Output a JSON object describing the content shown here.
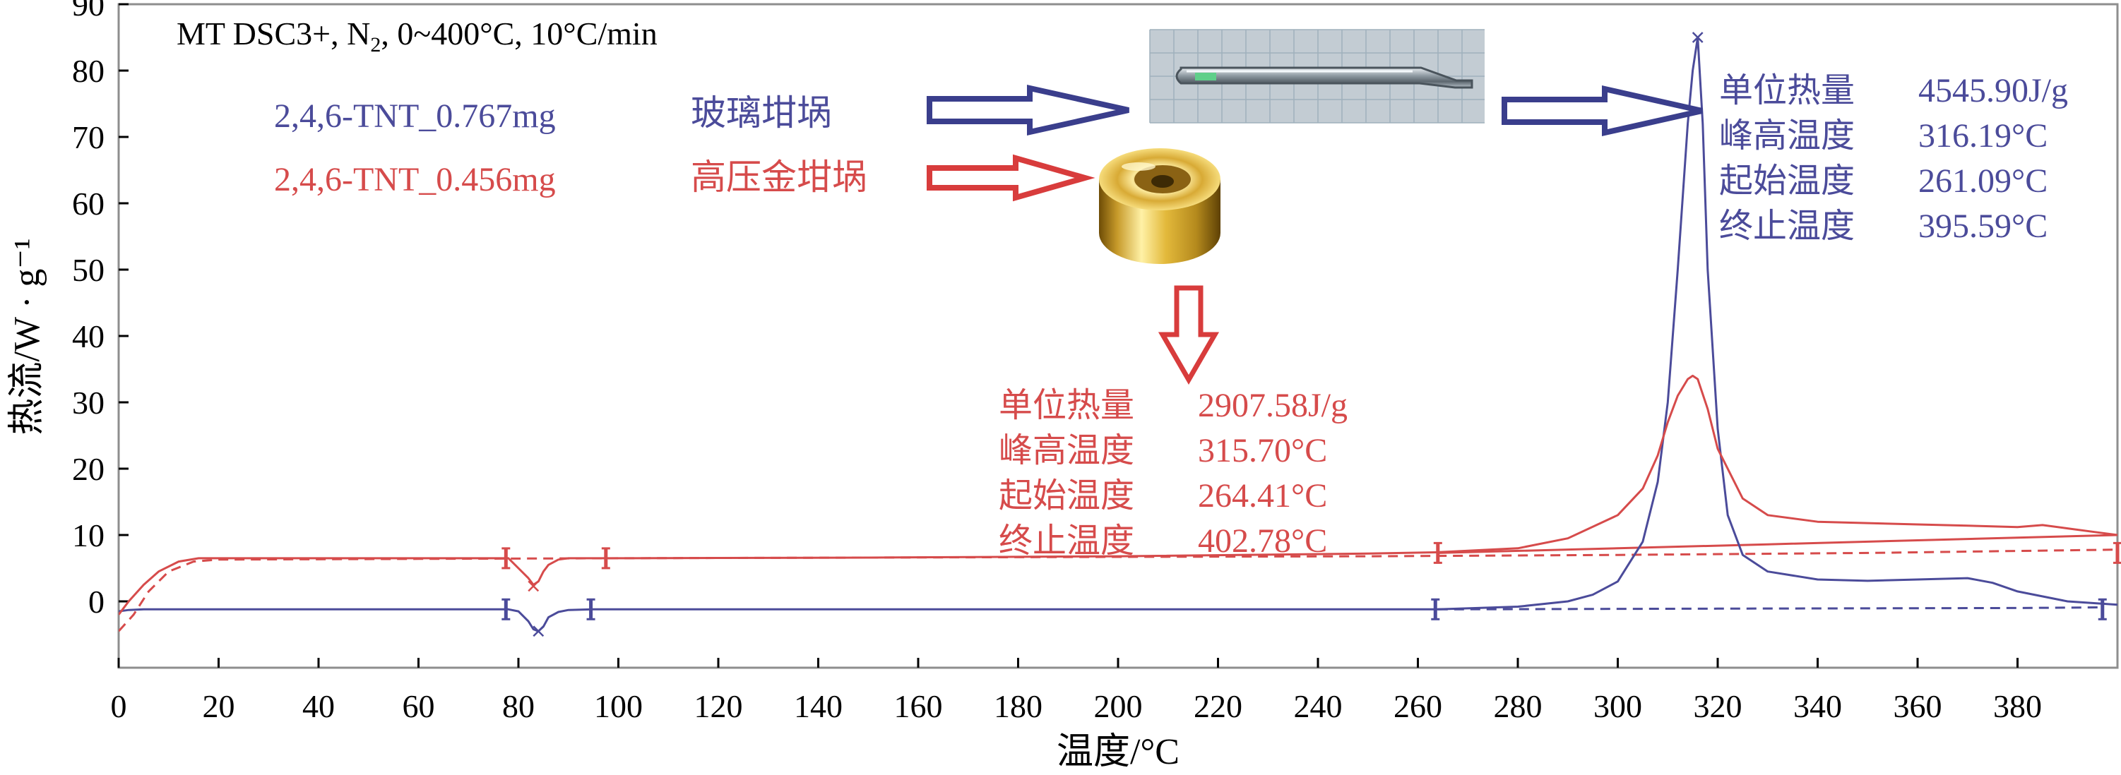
{
  "chart_data": {
    "type": "line",
    "title_parts": {
      "prefix": "MT DSC3+, N",
      "sub": "2",
      "suffix": ", 0~400°C, 10°C/min"
    },
    "xlabel": "温度/°C",
    "ylabel": "热流/W · g⁻¹",
    "xlim": [
      0,
      400
    ],
    "ylim": [
      -10,
      90
    ],
    "x_ticks": [
      0,
      20,
      40,
      60,
      80,
      100,
      120,
      140,
      160,
      180,
      200,
      220,
      240,
      260,
      280,
      300,
      320,
      340,
      360,
      380
    ],
    "y_ticks": [
      0,
      10,
      20,
      30,
      40,
      50,
      60,
      70,
      80,
      90
    ],
    "grid": false,
    "series": [
      {
        "name": "2,4,6-TNT_0.767mg",
        "crucible": "玻璃坩埚",
        "color": "#4b4b9a",
        "x": [
          0,
          2,
          5,
          10,
          20,
          40,
          60,
          78,
          80,
          82,
          83,
          84,
          85,
          86,
          88,
          90,
          95,
          100,
          150,
          200,
          250,
          264,
          280,
          290,
          295,
          300,
          305,
          308,
          310,
          312,
          314,
          315,
          316,
          317,
          318,
          320,
          322,
          325,
          330,
          340,
          350,
          360,
          370,
          375,
          380,
          390,
          400
        ],
        "y": [
          -1.5,
          -1.3,
          -1.2,
          -1.2,
          -1.2,
          -1.2,
          -1.2,
          -1.2,
          -1.5,
          -3,
          -4.2,
          -4.5,
          -3.8,
          -2.4,
          -1.6,
          -1.3,
          -1.2,
          -1.2,
          -1.2,
          -1.2,
          -1.2,
          -1.2,
          -0.8,
          0,
          1,
          3,
          9,
          18,
          30,
          50,
          72,
          80,
          85,
          72,
          50,
          26,
          13,
          7,
          4.5,
          3.3,
          3.1,
          3.3,
          3.5,
          2.8,
          1.5,
          0,
          -0.5
        ]
      },
      {
        "name": "2,4,6-TNT_0.456mg",
        "crucible": "高压金坩埚",
        "color": "#d64b4b",
        "x": [
          0,
          2,
          5,
          8,
          12,
          16,
          20,
          30,
          60,
          78,
          80,
          82,
          83,
          84,
          85,
          86,
          88,
          90,
          95,
          100,
          150,
          200,
          250,
          264,
          280,
          290,
          300,
          305,
          308,
          310,
          312,
          314,
          315,
          316,
          318,
          320,
          325,
          330,
          340,
          350,
          360,
          370,
          380,
          385,
          390,
          395,
          400
        ],
        "y": [
          -2,
          0,
          2.5,
          4.5,
          6,
          6.5,
          6.5,
          6.5,
          6.5,
          6.5,
          5,
          3.5,
          2.5,
          3,
          4.5,
          5.5,
          6.3,
          6.5,
          6.5,
          6.5,
          6.6,
          6.8,
          7.2,
          7.4,
          8,
          9.5,
          13,
          17,
          22,
          27,
          31,
          33.5,
          34,
          33.5,
          29,
          23,
          15.5,
          13,
          12,
          11.8,
          11.6,
          11.4,
          11.2,
          11.5,
          11,
          10.5,
          10
        ]
      }
    ],
    "baselines": [
      {
        "series": "2,4,6-TNT_0.456mg",
        "style": "dashed",
        "x": [
          0,
          3,
          6,
          10,
          15,
          20,
          60,
          100,
          150,
          200,
          250,
          300,
          350,
          400
        ],
        "y": [
          -4.5,
          -2,
          1.5,
          4.5,
          6,
          6.3,
          6.4,
          6.5,
          6.6,
          6.7,
          6.8,
          7,
          7.3,
          7.8
        ]
      },
      {
        "series": "2,4,6-TNT_0.456mg",
        "style": "solid",
        "x": [
          264,
          300,
          330,
          360,
          400
        ],
        "y": [
          7.3,
          8,
          8.6,
          9.2,
          10
        ]
      },
      {
        "series": "2,4,6-TNT_0.767mg",
        "style": "dashed",
        "x": [
          264,
          320,
          380,
          397
        ],
        "y": [
          -1.2,
          -1.1,
          -1,
          -0.9
        ]
      }
    ],
    "integration_markers": [
      {
        "series": "2,4,6-TNT_0.456mg",
        "x_start": 77.5,
        "x_end": 97.5,
        "y": 6.5
      },
      {
        "series": "2,4,6-TNT_0.456mg",
        "x_start": 264,
        "x_end": 400,
        "y": 7.3
      },
      {
        "series": "2,4,6-TNT_0.767mg",
        "x_start": 77.5,
        "x_end": 94.5,
        "y": -1.2
      },
      {
        "series": "2,4,6-TNT_0.767mg",
        "x_start": 263.5,
        "x_end": 397,
        "y": -1.2
      }
    ],
    "peak_marks": [
      {
        "series": "2,4,6-TNT_0.767mg",
        "x": 84,
        "y": -4.5
      },
      {
        "series": "2,4,6-TNT_0.456mg",
        "x": 83,
        "y": 2.3
      },
      {
        "series": "2,4,6-TNT_0.767mg",
        "x": 316,
        "y": 85
      }
    ],
    "results": [
      {
        "series": "2,4,6-TNT_0.767mg",
        "rows": [
          {
            "label": "单位热量",
            "value": "4545.90J/g"
          },
          {
            "label": "峰高温度",
            "value": "316.19°C"
          },
          {
            "label": "起始温度",
            "value": "261.09°C"
          },
          {
            "label": "终止温度",
            "value": "395.59°C"
          }
        ]
      },
      {
        "series": "2,4,6-TNT_0.456mg",
        "rows": [
          {
            "label": "单位热量",
            "value": "2907.58J/g"
          },
          {
            "label": "峰高温度",
            "value": "315.70°C"
          },
          {
            "label": "起始温度",
            "value": "264.41°C"
          },
          {
            "label": "终止温度",
            "value": "402.78°C"
          }
        ]
      }
    ]
  },
  "colors": {
    "blue": "#4b4b9a",
    "red": "#d64b4b",
    "arrow_blue": "#3a3e8c",
    "arrow_red": "#d83c3c"
  },
  "images": [
    {
      "name": "glass-crucible-photo",
      "depicts": "glass tube crucible on grid background"
    },
    {
      "name": "gold-crucible-photo",
      "depicts": "gold high-pressure crucible"
    }
  ]
}
